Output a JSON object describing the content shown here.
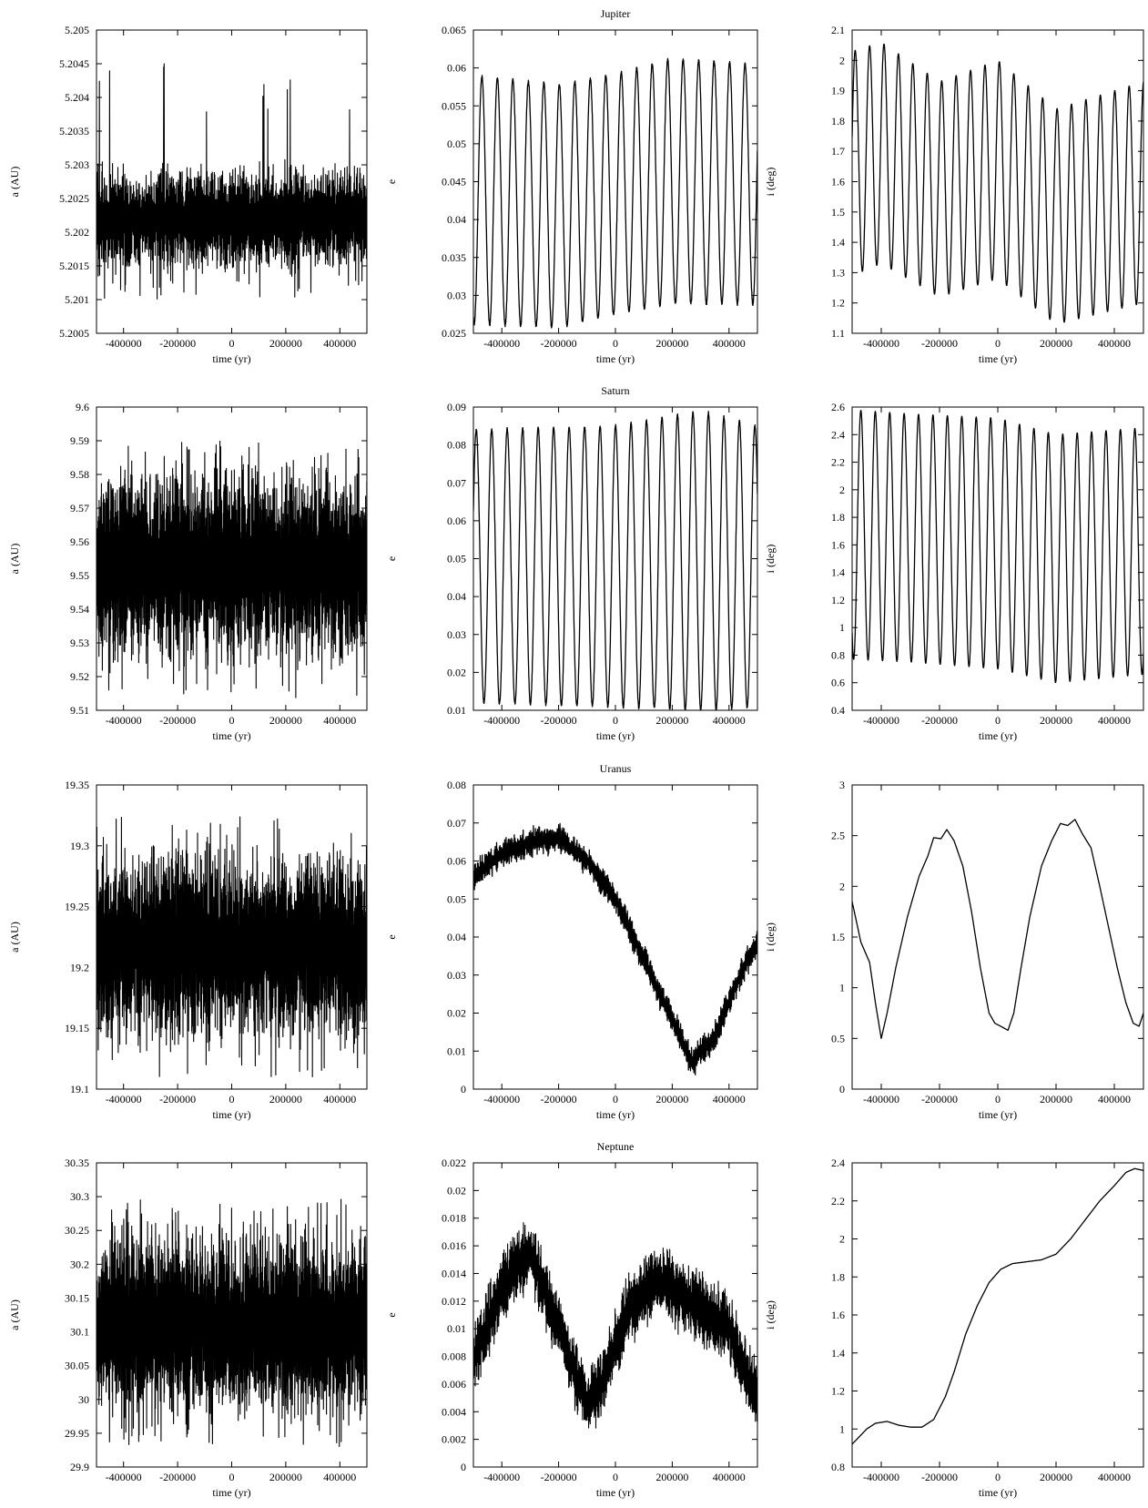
{
  "chart_data": [
    {
      "type": "line",
      "planet": "Jupiter",
      "quantity": "a",
      "title": "",
      "ylabel": "a (AU)",
      "xlabel": "time (yr)",
      "xlim": [
        -500000,
        500000
      ],
      "ylim": [
        5.2005,
        5.205
      ],
      "xticks": [
        "-400000",
        "-200000",
        "0",
        "200000",
        "400000"
      ],
      "yticks": [
        "5.2005",
        "5.201",
        "5.2015",
        "5.202",
        "5.2025",
        "5.203",
        "5.2035",
        "5.204",
        "5.2045",
        "5.205"
      ],
      "series": [
        {
          "trend": [
            [
              -500000,
              5.2022
            ],
            [
              500000,
              5.2022
            ]
          ],
          "jitter": 0.0009,
          "jitter_step": 900,
          "jitter_extremes": [
            5.201,
            5.20452
          ]
        }
      ]
    },
    {
      "type": "line",
      "planet": "Jupiter",
      "quantity": "e",
      "title": "Jupiter",
      "ylabel": "e",
      "xlabel": "time (yr)",
      "xlim": [
        -500000,
        500000
      ],
      "ylim": [
        0.025,
        0.065
      ],
      "xticks": [
        "-400000",
        "-200000",
        "0",
        "200000",
        "400000"
      ],
      "yticks": [
        "0.025",
        "0.03",
        "0.035",
        "0.04",
        "0.045",
        "0.05",
        "0.055",
        "0.06",
        "0.065"
      ],
      "series": [
        {
          "oscillation": {
            "period": 54500,
            "phase": -470000,
            "peaks": [
              [
                -500000,
                0.059
              ],
              [
                -200000,
                0.0578
              ],
              [
                0,
                0.0592
              ],
              [
                200000,
                0.0612
              ],
              [
                500000,
                0.0605
              ]
            ],
            "troughs": [
              [
                -500000,
                0.0262
              ],
              [
                -200000,
                0.0258
              ],
              [
                0,
                0.0275
              ],
              [
                200000,
                0.029
              ],
              [
                500000,
                0.0288
              ]
            ]
          },
          "jitter": 0.0004
        }
      ]
    },
    {
      "type": "line",
      "planet": "Jupiter",
      "quantity": "i",
      "title": "",
      "ylabel": "i (deg)",
      "xlabel": "time (yr)",
      "xlim": [
        -500000,
        500000
      ],
      "ylim": [
        1.1,
        2.1
      ],
      "xticks": [
        "-400000",
        "-200000",
        "0",
        "200000",
        "400000"
      ],
      "yticks": [
        "1.1",
        "1.2",
        "1.3",
        "1.4",
        "1.5",
        "1.6",
        "1.7",
        "1.8",
        "1.9",
        "2",
        "2.1"
      ],
      "series": [
        {
          "oscillation": {
            "period": 49500,
            "phase": -440000,
            "peaks": [
              [
                -500000,
                2.03
              ],
              [
                -400000,
                2.06
              ],
              [
                -200000,
                1.93
              ],
              [
                0,
                2.0
              ],
              [
                200000,
                1.84
              ],
              [
                500000,
                1.93
              ]
            ],
            "troughs": [
              [
                -500000,
                1.29
              ],
              [
                -400000,
                1.33
              ],
              [
                -200000,
                1.22
              ],
              [
                0,
                1.28
              ],
              [
                200000,
                1.13
              ],
              [
                500000,
                1.2
              ]
            ]
          },
          "jitter": 0
        }
      ]
    },
    {
      "type": "line",
      "planet": "Saturn",
      "quantity": "a",
      "title": "",
      "ylabel": "a (AU)",
      "xlabel": "time (yr)",
      "xlim": [
        -500000,
        500000
      ],
      "ylim": [
        9.51,
        9.6
      ],
      "xticks": [
        "-400000",
        "-200000",
        "0",
        "200000",
        "400000"
      ],
      "yticks": [
        "9.51",
        "9.52",
        "9.53",
        "9.54",
        "9.55",
        "9.56",
        "9.57",
        "9.58",
        "9.59",
        "9.6"
      ],
      "series": [
        {
          "trend": [
            [
              -500000,
              9.553
            ],
            [
              500000,
              9.553
            ]
          ],
          "jitter": 0.033,
          "jitter_step": 700,
          "jitter_extremes": [
            9.513,
            9.59
          ]
        }
      ]
    },
    {
      "type": "line",
      "planet": "Saturn",
      "quantity": "e",
      "title": "Saturn",
      "ylabel": "e",
      "xlabel": "time (yr)",
      "xlim": [
        -500000,
        500000
      ],
      "ylim": [
        0.01,
        0.09
      ],
      "xticks": [
        "-400000",
        "-200000",
        "0",
        "200000",
        "400000"
      ],
      "yticks": [
        "0.01",
        "0.02",
        "0.03",
        "0.04",
        "0.05",
        "0.06",
        "0.07",
        "0.08",
        "0.09"
      ],
      "series": [
        {
          "oscillation": {
            "period": 54500,
            "phase": -490000,
            "peaks": [
              [
                -500000,
                0.084
              ],
              [
                0,
                0.085
              ],
              [
                300000,
                0.089
              ],
              [
                500000,
                0.085
              ]
            ],
            "troughs": [
              [
                -500000,
                0.012
              ],
              [
                0,
                0.011
              ],
              [
                300000,
                0.01
              ],
              [
                500000,
                0.011
              ]
            ]
          },
          "jitter": 0.0008
        }
      ]
    },
    {
      "type": "line",
      "planet": "Saturn",
      "quantity": "i",
      "title": "",
      "ylabel": "i (deg)",
      "xlabel": "time (yr)",
      "xlim": [
        -500000,
        500000
      ],
      "ylim": [
        0.4,
        2.6
      ],
      "xticks": [
        "-400000",
        "-200000",
        "0",
        "200000",
        "400000"
      ],
      "yticks": [
        "0.4",
        "0.6",
        "0.8",
        "1",
        "1.2",
        "1.4",
        "1.6",
        "1.8",
        "2",
        "2.2",
        "2.4",
        "2.6"
      ],
      "series": [
        {
          "oscillation": {
            "period": 49500,
            "phase": -470000,
            "peaks": [
              [
                -500000,
                2.58
              ],
              [
                -300000,
                2.55
              ],
              [
                0,
                2.52
              ],
              [
                200000,
                2.4
              ],
              [
                500000,
                2.45
              ]
            ],
            "troughs": [
              [
                -500000,
                0.77
              ],
              [
                -300000,
                0.75
              ],
              [
                0,
                0.7
              ],
              [
                200000,
                0.6
              ],
              [
                500000,
                0.66
              ]
            ]
          },
          "jitter": 0
        }
      ]
    },
    {
      "type": "line",
      "planet": "Uranus",
      "quantity": "a",
      "title": "",
      "ylabel": "a (AU)",
      "xlabel": "time (yr)",
      "xlim": [
        -500000,
        500000
      ],
      "ylim": [
        19.1,
        19.35
      ],
      "xticks": [
        "-400000",
        "-200000",
        "0",
        "200000",
        "400000"
      ],
      "yticks": [
        "19.1",
        "19.15",
        "19.2",
        "19.25",
        "19.3",
        "19.35"
      ],
      "series": [
        {
          "trend": [
            [
              -500000,
              19.218
            ],
            [
              500000,
              19.218
            ]
          ],
          "jitter": 0.09,
          "jitter_step": 700,
          "jitter_extremes": [
            19.11,
            19.325
          ]
        }
      ]
    },
    {
      "type": "line",
      "planet": "Uranus",
      "quantity": "e",
      "title": "Uranus",
      "ylabel": "e",
      "xlabel": "time (yr)",
      "xlim": [
        -500000,
        500000
      ],
      "ylim": [
        0,
        0.08
      ],
      "xticks": [
        "-400000",
        "-200000",
        "0",
        "200000",
        "400000"
      ],
      "yticks": [
        "0",
        "0.01",
        "0.02",
        "0.03",
        "0.04",
        "0.05",
        "0.06",
        "0.07",
        "0.08"
      ],
      "series": [
        {
          "trend": [
            [
              -500000,
              0.056
            ],
            [
              -400000,
              0.062
            ],
            [
              -300000,
              0.065
            ],
            [
              -200000,
              0.066
            ],
            [
              -100000,
              0.06
            ],
            [
              0,
              0.05
            ],
            [
              100000,
              0.034
            ],
            [
              200000,
              0.018
            ],
            [
              270000,
              0.007
            ],
            [
              350000,
              0.014
            ],
            [
              420000,
              0.027
            ],
            [
              500000,
              0.039
            ]
          ],
          "jitter": 0.0045,
          "jitter_step": 1200
        }
      ]
    },
    {
      "type": "line",
      "planet": "Uranus",
      "quantity": "i",
      "title": "",
      "ylabel": "i (deg)",
      "xlabel": "time (yr)",
      "xlim": [
        -500000,
        500000
      ],
      "ylim": [
        0,
        3
      ],
      "xticks": [
        "-400000",
        "-200000",
        "0",
        "200000",
        "400000"
      ],
      "yticks": [
        "0",
        "0.5",
        "1",
        "1.5",
        "2",
        "2.5",
        "3"
      ],
      "series": [
        {
          "trend": [
            [
              -500000,
              1.85
            ],
            [
              -470000,
              1.45
            ],
            [
              -440000,
              1.25
            ],
            [
              -420000,
              0.85
            ],
            [
              -400000,
              0.5
            ],
            [
              -380000,
              0.75
            ],
            [
              -350000,
              1.2
            ],
            [
              -310000,
              1.7
            ],
            [
              -270000,
              2.1
            ],
            [
              -240000,
              2.3
            ],
            [
              -220000,
              2.48
            ],
            [
              -195000,
              2.47
            ],
            [
              -175000,
              2.56
            ],
            [
              -150000,
              2.45
            ],
            [
              -120000,
              2.2
            ],
            [
              -90000,
              1.75
            ],
            [
              -60000,
              1.2
            ],
            [
              -30000,
              0.75
            ],
            [
              -10000,
              0.65
            ],
            [
              10000,
              0.62
            ],
            [
              35000,
              0.58
            ],
            [
              55000,
              0.75
            ],
            [
              80000,
              1.2
            ],
            [
              110000,
              1.7
            ],
            [
              150000,
              2.2
            ],
            [
              185000,
              2.45
            ],
            [
              215000,
              2.62
            ],
            [
              240000,
              2.6
            ],
            [
              265000,
              2.66
            ],
            [
              290000,
              2.52
            ],
            [
              320000,
              2.38
            ],
            [
              350000,
              2.0
            ],
            [
              380000,
              1.6
            ],
            [
              410000,
              1.2
            ],
            [
              440000,
              0.85
            ],
            [
              465000,
              0.65
            ],
            [
              485000,
              0.62
            ],
            [
              500000,
              0.75
            ]
          ],
          "jitter": 0
        }
      ]
    },
    {
      "type": "line",
      "planet": "Neptune",
      "quantity": "a",
      "title": "",
      "ylabel": "a (AU)",
      "xlabel": "time (yr)",
      "xlim": [
        -500000,
        500000
      ],
      "ylim": [
        29.9,
        30.35
      ],
      "xticks": [
        "-400000",
        "-200000",
        "0",
        "200000",
        "400000"
      ],
      "yticks": [
        "29.9",
        "29.95",
        "30",
        "30.05",
        "30.1",
        "30.15",
        "30.2",
        "30.25",
        "30.3",
        "30.35"
      ],
      "series": [
        {
          "trend": [
            [
              -500000,
              30.11
            ],
            [
              500000,
              30.11
            ]
          ],
          "jitter": 0.16,
          "jitter_step": 700,
          "jitter_extremes": [
            29.93,
            30.3
          ]
        }
      ]
    },
    {
      "type": "line",
      "planet": "Neptune",
      "quantity": "e",
      "title": "Neptune",
      "ylabel": "e",
      "xlabel": "time (yr)",
      "xlim": [
        -500000,
        500000
      ],
      "ylim": [
        0,
        0.022
      ],
      "xticks": [
        "-400000",
        "-200000",
        "0",
        "200000",
        "400000"
      ],
      "yticks": [
        "0",
        "0.002",
        "0.004",
        "0.006",
        "0.008",
        "0.01",
        "0.012",
        "0.014",
        "0.016",
        "0.018",
        "0.02",
        "0.022"
      ],
      "series": [
        {
          "trend": [
            [
              -500000,
              0.0075
            ],
            [
              -400000,
              0.013
            ],
            [
              -300000,
              0.0155
            ],
            [
              -200000,
              0.01
            ],
            [
              -100000,
              0.0045
            ],
            [
              -50000,
              0.006
            ],
            [
              50000,
              0.0115
            ],
            [
              150000,
              0.0135
            ],
            [
              300000,
              0.0115
            ],
            [
              400000,
              0.01
            ],
            [
              500000,
              0.005
            ]
          ],
          "jitter": 0.003,
          "jitter_step": 900
        }
      ]
    },
    {
      "type": "line",
      "planet": "Neptune",
      "quantity": "i",
      "title": "",
      "ylabel": "i (deg)",
      "xlabel": "time (yr)",
      "xlim": [
        -500000,
        500000
      ],
      "ylim": [
        0.8,
        2.4
      ],
      "xticks": [
        "-400000",
        "-200000",
        "0",
        "200000",
        "400000"
      ],
      "yticks": [
        "0.8",
        "1",
        "1.2",
        "1.4",
        "1.6",
        "1.8",
        "2",
        "2.2",
        "2.4"
      ],
      "series": [
        {
          "trend": [
            [
              -500000,
              0.92
            ],
            [
              -450000,
              1.0
            ],
            [
              -420000,
              1.03
            ],
            [
              -380000,
              1.04
            ],
            [
              -340000,
              1.02
            ],
            [
              -300000,
              1.01
            ],
            [
              -260000,
              1.01
            ],
            [
              -220000,
              1.05
            ],
            [
              -180000,
              1.17
            ],
            [
              -150000,
              1.3
            ],
            [
              -110000,
              1.5
            ],
            [
              -70000,
              1.65
            ],
            [
              -30000,
              1.77
            ],
            [
              10000,
              1.84
            ],
            [
              50000,
              1.87
            ],
            [
              100000,
              1.88
            ],
            [
              150000,
              1.89
            ],
            [
              200000,
              1.92
            ],
            [
              250000,
              2.0
            ],
            [
              300000,
              2.1
            ],
            [
              350000,
              2.2
            ],
            [
              400000,
              2.28
            ],
            [
              440000,
              2.35
            ],
            [
              470000,
              2.37
            ],
            [
              500000,
              2.36
            ]
          ],
          "jitter": 0
        }
      ]
    }
  ]
}
